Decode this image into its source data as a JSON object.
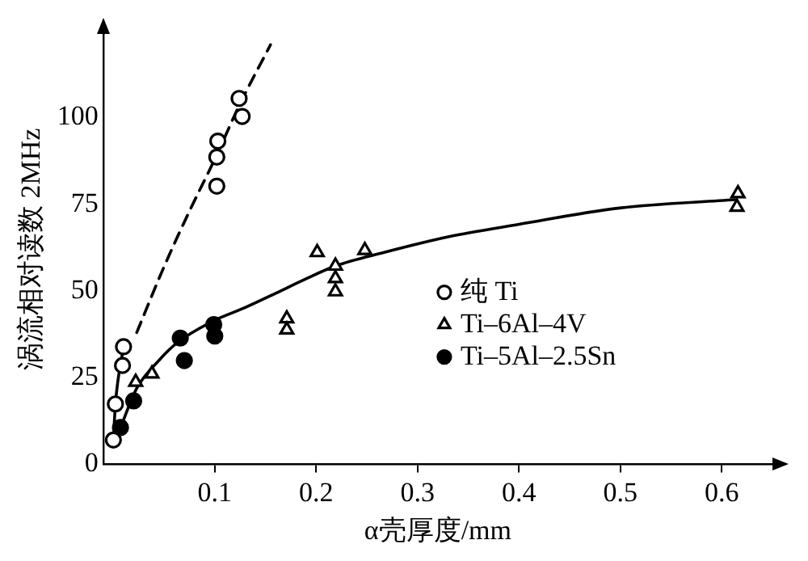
{
  "chart_data": {
    "type": "scatter",
    "xlabel": "α壳厚度/mm",
    "ylabel": "涡流相对读数 2MHz",
    "xlim": [
      -0.01,
      0.65
    ],
    "ylim": [
      0,
      124
    ],
    "xticks": [
      0.1,
      0.2,
      0.3,
      0.4,
      0.5,
      0.6
    ],
    "yticks": [
      0,
      25,
      50,
      75,
      100
    ],
    "grid": false,
    "legend": "right",
    "series": [
      {
        "name": "纯 Ti",
        "color": "#000000",
        "marker": "circle",
        "x": [
          0,
          0.002,
          0.009,
          0.01,
          0.102,
          0.102,
          0.103,
          0.124,
          0.127
        ],
        "values": [
          7,
          17.4,
          28.5,
          33.9,
          80.2,
          88.6,
          93.2,
          105.5,
          100.3
        ]
      },
      {
        "name": "Ti–6Al–4V",
        "color": "#000000",
        "marker": "triangle",
        "x": [
          0.022,
          0.038,
          0.171,
          0.171,
          0.201,
          0.219,
          0.219,
          0.219,
          0.248,
          0.616,
          0.615
        ],
        "values": [
          23.7,
          26.1,
          42,
          38.8,
          61.1,
          57.2,
          53.6,
          49.8,
          61.7,
          78.1,
          74.2
        ]
      },
      {
        "name": "Ti–5Al–2.5Sn",
        "color": "#000000",
        "marker": "circle",
        "x": [
          0.007,
          0.02,
          0.066,
          0.07,
          0.099,
          0.1
        ],
        "values": [
          10.6,
          18.3,
          36.4,
          29.9,
          40.3,
          37
        ]
      },
      {
        "type": "line",
        "color": "#000000",
        "line_style": "solid",
        "marker": "none",
        "x": [
          0,
          0.002,
          0.01
        ],
        "values": [
          7,
          17.4,
          34
        ]
      },
      {
        "type": "line",
        "color": "#000000",
        "line_style": "dashed",
        "marker": "none",
        "x": [
          0.023,
          0.05,
          0.075,
          0.1,
          0.125,
          0.155
        ],
        "values": [
          38,
          57,
          73,
          88,
          104,
          121
        ]
      },
      {
        "type": "line",
        "color": "#000000",
        "line_style": "solid",
        "marker": "none",
        "x": [
          0.007,
          0.023,
          0.045,
          0.064,
          0.099,
          0.13,
          0.16,
          0.19,
          0.219,
          0.267,
          0.33,
          0.4,
          0.499,
          0.613
        ],
        "values": [
          10.6,
          21.9,
          30,
          35.3,
          41.4,
          45.2,
          49.3,
          53.5,
          57.2,
          61.1,
          65.6,
          69.2,
          73.9,
          76.3
        ]
      }
    ]
  }
}
